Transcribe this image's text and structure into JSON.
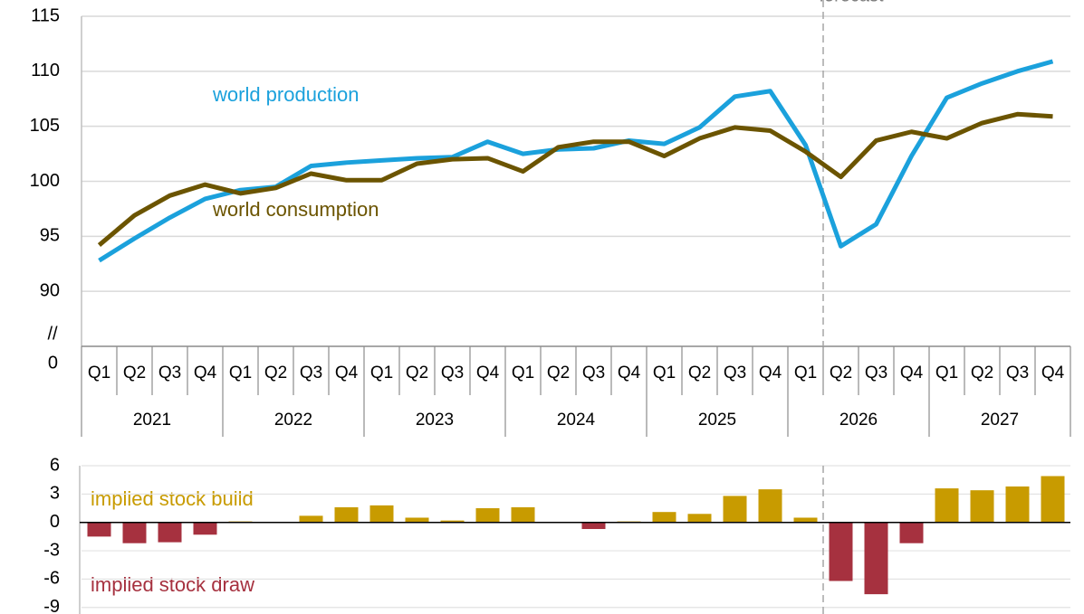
{
  "chart_data": [
    {
      "type": "line",
      "categories": [
        "Q1",
        "Q2",
        "Q3",
        "Q4",
        "Q1",
        "Q2",
        "Q3",
        "Q4",
        "Q1",
        "Q2",
        "Q3",
        "Q4",
        "Q1",
        "Q2",
        "Q3",
        "Q4",
        "Q1",
        "Q2",
        "Q3",
        "Q4",
        "Q1",
        "Q2",
        "Q3",
        "Q4",
        "Q1",
        "Q2",
        "Q3",
        "Q4"
      ],
      "groups": [
        "2021",
        "2022",
        "2023",
        "2024",
        "2025",
        "2026",
        "2027"
      ],
      "series": [
        {
          "name": "world production",
          "color": "#1ba1dc",
          "values": [
            92.8,
            94.8,
            96.7,
            98.4,
            99.2,
            99.5,
            101.4,
            101.7,
            101.9,
            102.1,
            102.2,
            103.6,
            102.5,
            102.9,
            103.0,
            103.7,
            103.4,
            104.9,
            107.7,
            108.2,
            103.3,
            94.1,
            96.1,
            102.3,
            107.6,
            108.9,
            110.0,
            110.9
          ]
        },
        {
          "name": "world consumption",
          "color": "#6b5400",
          "values": [
            94.2,
            96.9,
            98.7,
            99.7,
            98.9,
            99.4,
            100.7,
            100.1,
            100.1,
            101.6,
            102.0,
            102.1,
            100.9,
            103.1,
            103.6,
            103.6,
            102.3,
            103.9,
            104.9,
            104.6,
            102.7,
            100.4,
            103.7,
            104.5,
            103.9,
            105.3,
            106.1,
            105.9
          ]
        }
      ],
      "ylim": [
        85,
        115
      ],
      "yticks": [
        90,
        95,
        100,
        105,
        110,
        115
      ],
      "axis_break": {
        "label": "0",
        "marker": "//"
      },
      "annotations": [
        "forecast"
      ],
      "grid": true
    },
    {
      "type": "bar",
      "values": [
        -1.5,
        -2.2,
        -2.1,
        -1.3,
        0.1,
        0.0,
        0.7,
        1.6,
        1.8,
        0.5,
        0.2,
        1.5,
        1.6,
        0.0,
        -0.7,
        0.1,
        1.1,
        0.9,
        2.8,
        3.5,
        0.5,
        -6.2,
        -7.6,
        -2.2,
        3.6,
        3.4,
        3.8,
        4.9
      ],
      "positive_color": "#c89b00",
      "negative_color": "#a6313f",
      "ylim": [
        -9.6,
        6
      ],
      "yticks": [
        -9,
        -6,
        -3,
        0,
        3,
        6
      ],
      "annotations": [
        "implied stock  build",
        "implied stock draw"
      ],
      "grid": true
    }
  ]
}
